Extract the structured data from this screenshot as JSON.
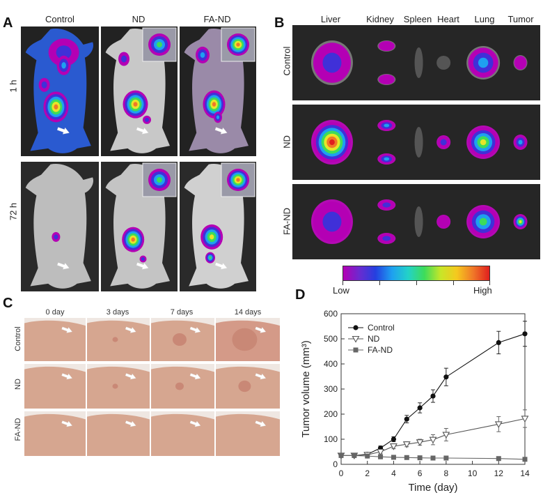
{
  "panels": {
    "A": {
      "letter": "A",
      "columns": [
        "Control",
        "ND",
        "FA-ND"
      ],
      "rows": [
        "1 h",
        "72 h"
      ]
    },
    "B": {
      "letter": "B",
      "columns": [
        "Liver",
        "Kidney",
        "Spleen",
        "Heart",
        "Lung",
        "Tumor"
      ],
      "rows": [
        "Control",
        "ND",
        "FA-ND"
      ],
      "colorbar": {
        "low": "Low",
        "high": "High"
      }
    },
    "C": {
      "letter": "C",
      "columns": [
        "0 day",
        "3 days",
        "7 days",
        "14 days"
      ],
      "rows": [
        "Control",
        "ND",
        "FA-ND"
      ]
    },
    "D": {
      "letter": "D"
    }
  },
  "colors": {
    "skin": "#d8a88e",
    "skin_dark": "#b9826a",
    "imaging_bg": "#2a2a2a",
    "series_control": "#111111",
    "series_nd": "#555555",
    "series_fand": "#666666"
  },
  "chart_data": {
    "type": "line",
    "xlabel": "Time (day)",
    "ylabel": "Tumor volume (mm³)",
    "xlim": [
      0,
      14
    ],
    "ylim": [
      0,
      600
    ],
    "xticks": [
      0,
      2,
      4,
      6,
      8,
      10,
      12,
      14
    ],
    "yticks": [
      0,
      100,
      200,
      300,
      400,
      500,
      600
    ],
    "grid": false,
    "legend": "top-left",
    "series": [
      {
        "name": "Control",
        "marker": "circle-filled",
        "x": [
          0,
          1,
          2,
          3,
          4,
          5,
          6,
          7,
          8,
          12,
          14
        ],
        "y": [
          35,
          35,
          40,
          65,
          100,
          180,
          225,
          272,
          348,
          485,
          520
        ],
        "err": [
          5,
          5,
          6,
          8,
          10,
          15,
          20,
          25,
          35,
          45,
          50
        ]
      },
      {
        "name": "ND",
        "marker": "triangle-down-open",
        "x": [
          0,
          1,
          2,
          3,
          4,
          5,
          6,
          7,
          8,
          12,
          14
        ],
        "y": [
          35,
          35,
          38,
          50,
          72,
          80,
          88,
          98,
          118,
          160,
          182
        ],
        "err": [
          5,
          5,
          5,
          8,
          10,
          10,
          12,
          20,
          25,
          30,
          35
        ]
      },
      {
        "name": "FA-ND",
        "marker": "square-filled",
        "x": [
          0,
          1,
          2,
          3,
          4,
          5,
          6,
          7,
          8,
          12,
          14
        ],
        "y": [
          35,
          35,
          33,
          30,
          28,
          27,
          26,
          25,
          25,
          23,
          20
        ],
        "err": [
          3,
          3,
          3,
          3,
          3,
          3,
          3,
          3,
          3,
          3,
          3
        ]
      }
    ]
  }
}
